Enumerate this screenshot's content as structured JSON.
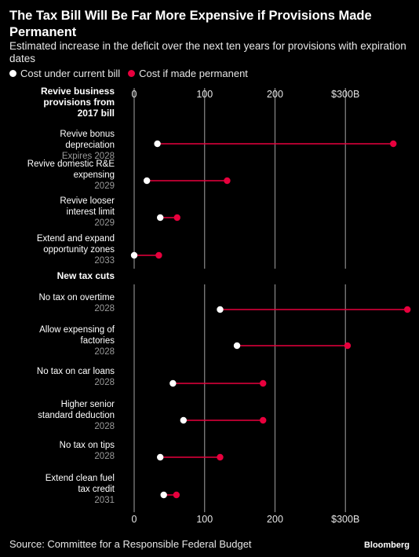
{
  "header": {
    "title": "The Tax Bill Will Be Far More Expensive if Provisions Made Permanent",
    "subtitle": "Estimated increase in the deficit over the next ten years for provisions with expiration dates"
  },
  "legend": {
    "current_label": "Cost under current bill",
    "permanent_label": "Cost if made permanent"
  },
  "colors": {
    "current": "#ffffff",
    "permanent": "#e8003d",
    "grid": "#8a8a8a"
  },
  "footer": {
    "source": "Source: Committee for a Responsible Federal Budget",
    "brand": "Bloomberg"
  },
  "chart_data": {
    "type": "dumbbell",
    "x_ticks": [
      0,
      100,
      200,
      300
    ],
    "x_tick_labels": [
      "0",
      "100",
      "200",
      "$300B"
    ],
    "xlim": [
      0,
      390
    ],
    "groups": [
      {
        "name": "Revive business provisions from 2017 bill",
        "items": [
          {
            "label": "Revive bonus depreciation",
            "note": "Expires 2028",
            "current": 33,
            "permanent": 368
          },
          {
            "label": "Revive domestic R&E expensing",
            "note": "2029",
            "current": 18,
            "permanent": 132
          },
          {
            "label": "Revive looser interest limit",
            "note": "2029",
            "current": 37,
            "permanent": 61
          },
          {
            "label": "Extend and expand opportunity zones",
            "note": "2033",
            "current": 0,
            "permanent": 35
          }
        ]
      },
      {
        "name": "New tax cuts",
        "items": [
          {
            "label": "No tax on overtime",
            "note": "2028",
            "current": 122,
            "permanent": 388
          },
          {
            "label": "Allow expensing of factories",
            "note": "2028",
            "current": 146,
            "permanent": 303
          },
          {
            "label": "No tax on car loans",
            "note": "2028",
            "current": 55,
            "permanent": 183
          },
          {
            "label": "Higher senior standard deduction",
            "note": "2028",
            "current": 70,
            "permanent": 183
          },
          {
            "label": "No tax on tips",
            "note": "2028",
            "current": 37,
            "permanent": 122
          },
          {
            "label": "Extend clean fuel tax credit",
            "note": "2031",
            "current": 42,
            "permanent": 60
          }
        ]
      }
    ]
  }
}
